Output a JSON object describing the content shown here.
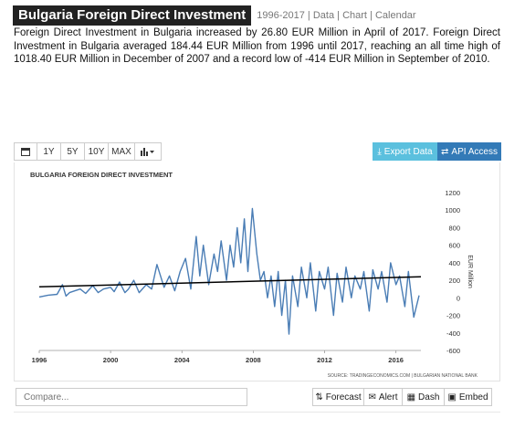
{
  "header": {
    "title": "Bulgaria Foreign Direct Investment",
    "range": "1996-2017",
    "links": [
      "Data",
      "Chart",
      "Calendar"
    ]
  },
  "description": "Foreign Direct Investment in Bulgaria increased by 26.80 EUR Million in April of 2017. Foreign Direct Investment in Bulgaria averaged 184.44 EUR Million from 1996 until 2017, reaching an all time high of 1018.40 EUR Million in December of 2007 and a record low of -414 EUR Million in September of 2010.",
  "toolbar": {
    "calendar_icon": "calendar-icon",
    "ranges": [
      "1Y",
      "5Y",
      "10Y",
      "MAX"
    ],
    "chart_type_icon": "bar-chart-icon",
    "export_label": "Export Data",
    "api_label": "API Access",
    "export_color": "#5bc0de",
    "api_color": "#337ab7"
  },
  "chart_data": {
    "type": "line",
    "title": "BULGARIA FOREIGN DIRECT INVESTMENT",
    "ylabel": "EUR Million",
    "xlim": [
      1996,
      2017.4
    ],
    "ylim": [
      -600,
      1200
    ],
    "yticks": [
      1200,
      1000,
      800,
      600,
      400,
      200,
      0,
      -200,
      -400,
      -600
    ],
    "xticks": [
      "1996",
      "2000",
      "2004",
      "2008",
      "2012",
      "2016"
    ],
    "series": [
      {
        "line_color": "#4a7db5",
        "x": [
          1996.0,
          1996.5,
          1997.0,
          1997.3,
          1997.5,
          1997.7,
          1998.0,
          1998.3,
          1998.6,
          1999.0,
          1999.3,
          1999.6,
          2000.0,
          2000.2,
          2000.5,
          2000.8,
          2001.0,
          2001.3,
          2001.6,
          2002.0,
          2002.3,
          2002.6,
          2003.0,
          2003.3,
          2003.6,
          2003.9,
          2004.2,
          2004.5,
          2004.8,
          2005.0,
          2005.2,
          2005.5,
          2005.8,
          2006.0,
          2006.2,
          2006.5,
          2006.7,
          2006.9,
          2007.1,
          2007.3,
          2007.5,
          2007.7,
          2007.95,
          2008.2,
          2008.4,
          2008.6,
          2008.8,
          2009.0,
          2009.2,
          2009.4,
          2009.6,
          2009.8,
          2010.0,
          2010.2,
          2010.5,
          2010.7,
          2011.0,
          2011.2,
          2011.5,
          2011.7,
          2012.0,
          2012.2,
          2012.5,
          2012.7,
          2013.0,
          2013.2,
          2013.5,
          2013.7,
          2014.0,
          2014.2,
          2014.5,
          2014.7,
          2015.0,
          2015.2,
          2015.5,
          2015.7,
          2016.0,
          2016.2,
          2016.5,
          2016.7,
          2017.0,
          2017.3
        ],
        "values": [
          10,
          30,
          40,
          150,
          20,
          60,
          80,
          100,
          50,
          140,
          60,
          100,
          120,
          70,
          180,
          60,
          100,
          200,
          60,
          150,
          100,
          380,
          120,
          250,
          80,
          300,
          450,
          100,
          700,
          250,
          600,
          150,
          500,
          300,
          650,
          200,
          600,
          350,
          800,
          400,
          900,
          300,
          1018,
          500,
          200,
          300,
          0,
          250,
          -100,
          300,
          -200,
          200,
          -414,
          250,
          -100,
          350,
          0,
          400,
          -150,
          300,
          100,
          350,
          -200,
          280,
          -50,
          350,
          0,
          250,
          100,
          300,
          -150,
          320,
          100,
          300,
          -50,
          400,
          150,
          250,
          -100,
          300,
          -220,
          27
        ]
      },
      {
        "name": "trend",
        "line_color": "#000000",
        "x": [
          1996,
          2017.4
        ],
        "values": [
          125,
          240
        ]
      }
    ],
    "source": "SOURCE: TRADINGECONOMICS.COM | BULGARIAN NATIONAL BANK",
    "grid": false
  },
  "footer": {
    "compare_placeholder": "Compare...",
    "buttons": [
      {
        "label": "Forecast",
        "icon": "forecast-icon"
      },
      {
        "label": "Alert",
        "icon": "alert-icon"
      },
      {
        "label": "Dash",
        "icon": "dash-icon"
      },
      {
        "label": "Embed",
        "icon": "embed-icon"
      }
    ]
  }
}
